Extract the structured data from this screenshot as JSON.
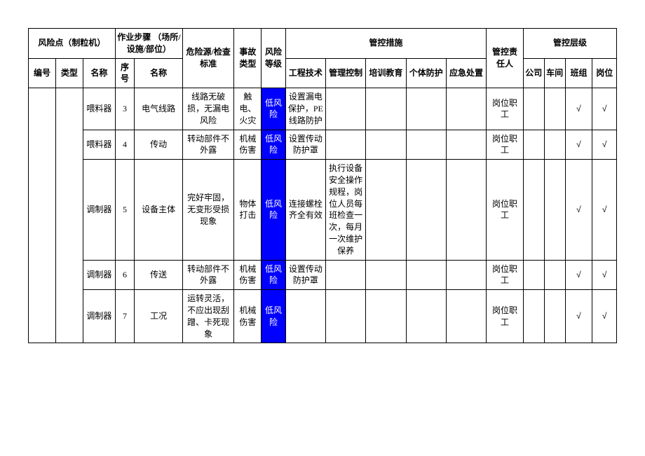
{
  "header": {
    "riskPoint": "风险点（制粒机）",
    "workStep": "作业步骤\n（场所/设施/部位）",
    "hazard": "危险源/检查标准",
    "accidentType": "事故类型",
    "riskLevel": "风险等级",
    "control": "管控措施",
    "responsible": "管控责任人",
    "controlLevel": "管控层级",
    "sub": {
      "no": "编号",
      "type": "类型",
      "name": "名称",
      "seq": "序号",
      "stepName": "名称",
      "eng": "工程技术",
      "mgmt": "管理控制",
      "train": "培训教育",
      "ppe": "个体防护",
      "emerg": "应急处置",
      "company": "公司",
      "workshop": "车间",
      "team": "班组",
      "post": "岗位"
    }
  },
  "riskLabel": "低风险",
  "checkmark": "√",
  "responsibleText": "岗位职工",
  "rows": [
    {
      "name": "喂料器",
      "seq": "3",
      "stepName": "电气线路",
      "hazard": "线路无破损，无漏电风险",
      "accident": "触电、火灾",
      "eng": "设置漏电保护，PE线路防护",
      "mgmt": ""
    },
    {
      "name": "喂料器",
      "seq": "4",
      "stepName": "传动",
      "hazard": "转动部件不外露",
      "accident": "机械伤害",
      "eng": "设置传动防护罩",
      "mgmt": ""
    },
    {
      "name": "调制器",
      "seq": "5",
      "stepName": "设备主体",
      "hazard": "完好牢固，无变形受损现象",
      "accident": "物体打击",
      "eng": "连接螺栓齐全有效",
      "mgmt": "执行设备安全操作规程，岗位人员每班检查一次，每月一次维护保养"
    },
    {
      "name": "调制器",
      "seq": "6",
      "stepName": "传送",
      "hazard": "转动部件不外露",
      "accident": "机械伤害",
      "eng": "设置传动防护罩",
      "mgmt": ""
    },
    {
      "name": "调制器",
      "seq": "7",
      "stepName": "工况",
      "hazard": "运转灵活，不应出现刮蹭、卡死现象",
      "accident": "机械伤害",
      "eng": "",
      "mgmt": ""
    }
  ],
  "colWidths": {
    "no": 34,
    "type": 34,
    "name": 40,
    "seq": 24,
    "stepName": 60,
    "hazard": 64,
    "accident": 34,
    "riskLevel": 30,
    "eng": 50,
    "mgmt": 50,
    "train": 50,
    "ppe": 50,
    "emerg": 50,
    "responsible": 46,
    "company": 26,
    "workshop": 26,
    "team": 34,
    "post": 30
  },
  "colors": {
    "riskBg": "#0000ff",
    "riskFg": "#ffffff",
    "border": "#000000",
    "bg": "#ffffff"
  }
}
